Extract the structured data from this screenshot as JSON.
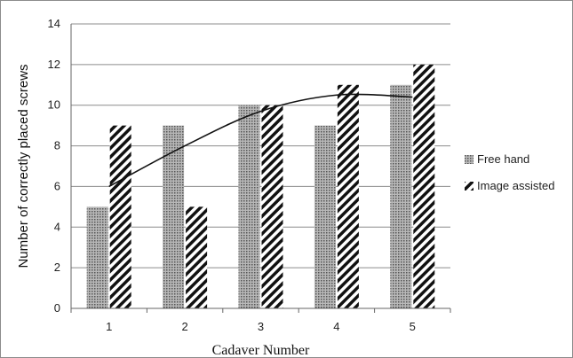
{
  "chart_data": {
    "type": "bar",
    "categories": [
      "1",
      "2",
      "3",
      "4",
      "5"
    ],
    "series": [
      {
        "name": "Free hand",
        "values": [
          5,
          9,
          10,
          9,
          11
        ],
        "pattern": "dotted"
      },
      {
        "name": "Image assisted",
        "values": [
          9,
          5,
          10,
          11,
          12
        ],
        "pattern": "hatched"
      }
    ],
    "trendline": {
      "type": "polynomial-2",
      "points": [
        [
          1,
          6
        ],
        [
          2,
          8
        ],
        [
          3,
          9.7
        ],
        [
          4,
          10.5
        ],
        [
          5,
          10.4
        ]
      ]
    },
    "xlabel": "Cadaver Number",
    "ylabel": "Number of correctly placed screws",
    "ylim": [
      0,
      14
    ],
    "yticks": [
      "0",
      "2",
      "4",
      "6",
      "8",
      "10",
      "12",
      "14"
    ],
    "grid": true,
    "legend_position": "right",
    "colors": {
      "bar_fill": "#9a9a9a",
      "hatch": "#111111",
      "gridline": "#8c8c8c",
      "trend": "#111111"
    }
  }
}
